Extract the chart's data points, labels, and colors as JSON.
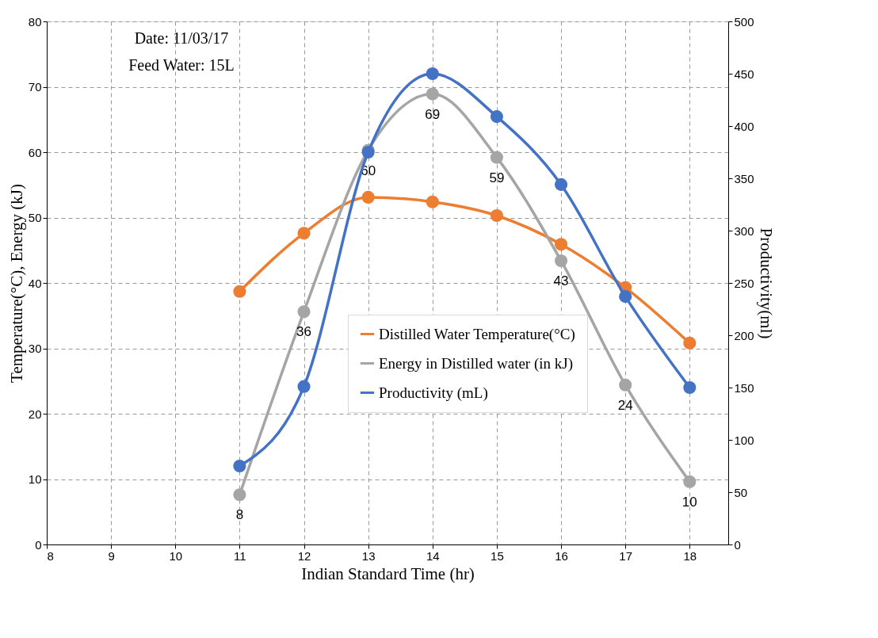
{
  "chart_data": {
    "type": "line",
    "xlabel": "Indian Standard Time (hr)",
    "ylabel": "Temperature(°C), Energy (kJ)",
    "y2label": "Productivity(ml)",
    "annotations": [
      "Date: 11/03/17",
      "Feed Water: 15L"
    ],
    "x": [
      11,
      12,
      13,
      14,
      15,
      16,
      17,
      18
    ],
    "xlim": [
      8,
      18.6
    ],
    "xticks": [
      8,
      9,
      10,
      11,
      12,
      13,
      14,
      15,
      16,
      17,
      18
    ],
    "ylim": [
      0,
      80
    ],
    "yticks": [
      0,
      10,
      20,
      30,
      40,
      50,
      60,
      70,
      80
    ],
    "y2lim": [
      0,
      500
    ],
    "y2ticks": [
      0,
      50,
      100,
      150,
      200,
      250,
      300,
      350,
      400,
      450,
      500
    ],
    "grid": true,
    "legend": "bottom right",
    "marker": "circle",
    "line_style": "solid",
    "series": [
      {
        "name": "Distilled Water Temperature(°C)",
        "color": "#ed7d31",
        "values": [
          38.7,
          47.6,
          53.1,
          52.4,
          50.3,
          45.9,
          39.3,
          30.8
        ]
      },
      {
        "name": "Energy in Distilled water (in kJ)",
        "color": "#a5a5a5",
        "values": [
          7.6,
          35.6,
          60.3,
          68.9,
          59.2,
          43.4,
          24.4,
          9.6
        ],
        "value_labels": [
          "8",
          "36",
          "60",
          "69",
          "59",
          "43",
          "24",
          "10"
        ]
      },
      {
        "name": "Productivity (mL)",
        "color": "#4472c4",
        "axis": "y2",
        "values": [
          75,
          151,
          375,
          450,
          409,
          344,
          237,
          150
        ]
      }
    ]
  }
}
